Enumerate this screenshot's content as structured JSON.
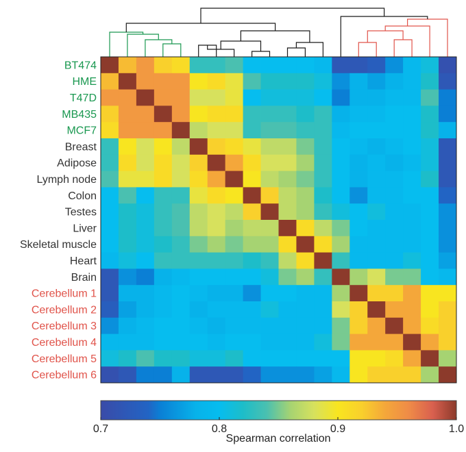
{
  "chart_data": {
    "type": "heatmap",
    "labels": [
      "BT474",
      "HME",
      "T47D",
      "MB435",
      "MCF7",
      "Breast",
      "Adipose",
      "Lymph node",
      "Colon",
      "Testes",
      "Liver",
      "Skeletal muscle",
      "Heart",
      "Brain",
      "Cerebellum 1",
      "Cerebellum 2",
      "Cerebellum 3",
      "Cerebellum 4",
      "Cerebellum 5",
      "Cerebellum 6"
    ],
    "label_groups": [
      "cell-line",
      "cell-line",
      "cell-line",
      "cell-line",
      "cell-line",
      "tissue",
      "tissue",
      "tissue",
      "tissue",
      "tissue",
      "tissue",
      "tissue",
      "tissue",
      "tissue",
      "cerebellum",
      "cerebellum",
      "cerebellum",
      "cerebellum",
      "cerebellum",
      "cerebellum"
    ],
    "group_colors": {
      "cell-line": "#1a9850",
      "tissue": "#333333",
      "cerebellum": "#e0534a"
    },
    "values": [
      [
        1.0,
        0.93,
        0.95,
        0.92,
        0.91,
        0.83,
        0.83,
        0.84,
        0.8,
        0.8,
        0.8,
        0.8,
        0.79,
        0.72,
        0.72,
        0.73,
        0.76,
        0.79,
        0.81,
        0.71
      ],
      [
        0.93,
        1.0,
        0.95,
        0.95,
        0.95,
        0.9,
        0.91,
        0.89,
        0.84,
        0.82,
        0.82,
        0.82,
        0.81,
        0.76,
        0.78,
        0.77,
        0.78,
        0.79,
        0.82,
        0.72
      ],
      [
        0.95,
        0.95,
        1.0,
        0.95,
        0.95,
        0.88,
        0.88,
        0.89,
        0.8,
        0.81,
        0.81,
        0.81,
        0.8,
        0.75,
        0.78,
        0.78,
        0.79,
        0.79,
        0.84,
        0.75
      ],
      [
        0.92,
        0.95,
        0.95,
        1.0,
        0.95,
        0.9,
        0.91,
        0.91,
        0.83,
        0.83,
        0.83,
        0.82,
        0.83,
        0.78,
        0.79,
        0.79,
        0.8,
        0.8,
        0.82,
        0.75
      ],
      [
        0.91,
        0.95,
        0.95,
        0.95,
        1.0,
        0.87,
        0.88,
        0.88,
        0.83,
        0.84,
        0.84,
        0.83,
        0.83,
        0.79,
        0.8,
        0.8,
        0.8,
        0.8,
        0.82,
        0.78
      ],
      [
        0.83,
        0.9,
        0.88,
        0.9,
        0.87,
        1.0,
        0.92,
        0.91,
        0.89,
        0.87,
        0.87,
        0.85,
        0.83,
        0.8,
        0.79,
        0.78,
        0.79,
        0.8,
        0.81,
        0.72
      ],
      [
        0.83,
        0.91,
        0.88,
        0.91,
        0.88,
        0.92,
        1.0,
        0.94,
        0.91,
        0.88,
        0.88,
        0.86,
        0.83,
        0.8,
        0.78,
        0.79,
        0.78,
        0.79,
        0.81,
        0.72
      ],
      [
        0.84,
        0.89,
        0.89,
        0.91,
        0.88,
        0.91,
        0.94,
        1.0,
        0.9,
        0.87,
        0.86,
        0.85,
        0.83,
        0.8,
        0.78,
        0.79,
        0.79,
        0.8,
        0.82,
        0.72
      ],
      [
        0.8,
        0.84,
        0.8,
        0.83,
        0.83,
        0.89,
        0.91,
        0.9,
        1.0,
        0.92,
        0.87,
        0.86,
        0.82,
        0.8,
        0.76,
        0.79,
        0.79,
        0.8,
        0.8,
        0.74
      ],
      [
        0.8,
        0.82,
        0.81,
        0.83,
        0.84,
        0.87,
        0.88,
        0.87,
        0.92,
        1.0,
        0.87,
        0.86,
        0.83,
        0.81,
        0.8,
        0.81,
        0.79,
        0.79,
        0.8,
        0.76
      ],
      [
        0.8,
        0.82,
        0.81,
        0.83,
        0.84,
        0.87,
        0.88,
        0.86,
        0.87,
        0.87,
        1.0,
        0.91,
        0.87,
        0.85,
        0.8,
        0.79,
        0.79,
        0.79,
        0.8,
        0.76
      ],
      [
        0.8,
        0.82,
        0.81,
        0.82,
        0.83,
        0.85,
        0.86,
        0.85,
        0.86,
        0.86,
        0.91,
        1.0,
        0.91,
        0.86,
        0.79,
        0.79,
        0.79,
        0.79,
        0.8,
        0.76
      ],
      [
        0.79,
        0.81,
        0.8,
        0.83,
        0.83,
        0.83,
        0.83,
        0.83,
        0.82,
        0.83,
        0.87,
        0.91,
        1.0,
        0.83,
        0.79,
        0.79,
        0.79,
        0.81,
        0.8,
        0.77
      ],
      [
        0.72,
        0.76,
        0.75,
        0.78,
        0.79,
        0.8,
        0.8,
        0.8,
        0.8,
        0.81,
        0.85,
        0.86,
        0.83,
        1.0,
        0.86,
        0.88,
        0.85,
        0.85,
        0.8,
        0.79
      ],
      [
        0.72,
        0.78,
        0.78,
        0.79,
        0.8,
        0.79,
        0.78,
        0.78,
        0.76,
        0.8,
        0.8,
        0.79,
        0.79,
        0.86,
        1.0,
        0.92,
        0.92,
        0.94,
        0.9,
        0.9
      ],
      [
        0.73,
        0.77,
        0.78,
        0.79,
        0.8,
        0.78,
        0.79,
        0.79,
        0.79,
        0.81,
        0.79,
        0.79,
        0.79,
        0.88,
        0.92,
        1.0,
        0.94,
        0.94,
        0.9,
        0.92
      ],
      [
        0.76,
        0.78,
        0.79,
        0.8,
        0.8,
        0.79,
        0.78,
        0.79,
        0.79,
        0.79,
        0.79,
        0.79,
        0.79,
        0.85,
        0.92,
        0.94,
        1.0,
        0.94,
        0.91,
        0.92
      ],
      [
        0.79,
        0.79,
        0.79,
        0.8,
        0.8,
        0.8,
        0.79,
        0.8,
        0.8,
        0.79,
        0.79,
        0.79,
        0.81,
        0.85,
        0.94,
        0.94,
        0.94,
        1.0,
        0.94,
        0.92
      ],
      [
        0.81,
        0.82,
        0.84,
        0.82,
        0.82,
        0.81,
        0.81,
        0.82,
        0.8,
        0.8,
        0.8,
        0.8,
        0.8,
        0.8,
        0.9,
        0.9,
        0.91,
        0.94,
        1.0,
        0.86
      ],
      [
        0.71,
        0.72,
        0.75,
        0.75,
        0.78,
        0.72,
        0.72,
        0.72,
        0.74,
        0.76,
        0.76,
        0.76,
        0.77,
        0.79,
        0.9,
        0.92,
        0.92,
        0.92,
        0.86,
        1.0
      ]
    ],
    "colorbar": {
      "range": [
        0.7,
        1.0
      ],
      "ticks": [
        0.7,
        0.8,
        0.9,
        1.0
      ],
      "tick_labels": [
        "0.7",
        "0.8",
        "0.9",
        "1.0"
      ],
      "label": "Spearman correlation",
      "placement": "bottom"
    },
    "colormap_stops": [
      {
        "value": 0.7,
        "color": "#3a4ba8"
      },
      {
        "value": 0.74,
        "color": "#2264c4"
      },
      {
        "value": 0.75,
        "color": "#0b7fd5"
      },
      {
        "value": 0.78,
        "color": "#07b2ea"
      },
      {
        "value": 0.8,
        "color": "#06bdef"
      },
      {
        "value": 0.82,
        "color": "#1dbdc9"
      },
      {
        "value": 0.84,
        "color": "#4ac0b0"
      },
      {
        "value": 0.86,
        "color": "#a6d372"
      },
      {
        "value": 0.88,
        "color": "#d7e15d"
      },
      {
        "value": 0.9,
        "color": "#f8e520"
      },
      {
        "value": 0.92,
        "color": "#f9d02c"
      },
      {
        "value": 0.94,
        "color": "#f4a73a"
      },
      {
        "value": 0.96,
        "color": "#ef8b47"
      },
      {
        "value": 0.98,
        "color": "#d9604f"
      },
      {
        "value": 1.0,
        "color": "#8c3a2b"
      }
    ],
    "dendrogram": {
      "groups": [
        {
          "name": "cell-line",
          "color": "#1a9850"
        },
        {
          "name": "tissue",
          "color": "#1a1a1a"
        },
        {
          "name": "cerebellum",
          "color": "#e0534a"
        }
      ]
    }
  }
}
